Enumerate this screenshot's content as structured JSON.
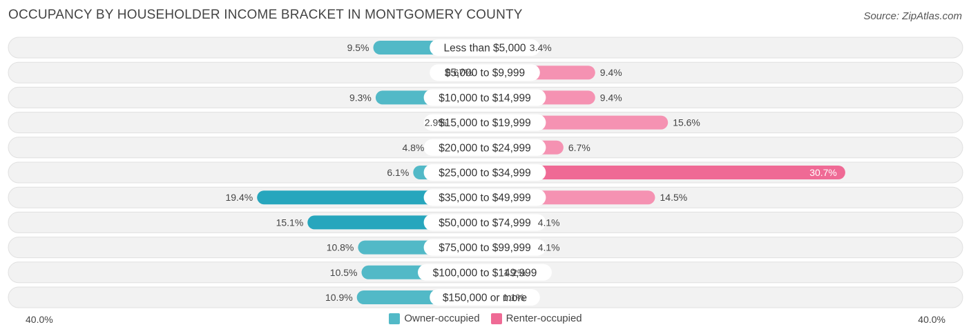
{
  "title": "OCCUPANCY BY HOUSEHOLDER INCOME BRACKET IN MONTGOMERY COUNTY",
  "source": "Source: ZipAtlas.com",
  "axis": {
    "left_label": "40.0%",
    "right_label": "40.0%"
  },
  "legend": {
    "owner_label": "Owner-occupied",
    "renter_label": "Renter-occupied"
  },
  "colors": {
    "owner": "#52b9c7",
    "owner_strong": "#27a6bd",
    "owner_light": "#93d4dc",
    "renter": "#f592b2",
    "renter_strong": "#ef6a95",
    "renter_light": "#f7b3c8",
    "row_bg": "#f1f1f1"
  },
  "chart_data": {
    "type": "bar",
    "orientation": "horizontal-diverging",
    "categories": [
      "Less than $5,000",
      "$5,000 to $9,999",
      "$10,000 to $14,999",
      "$15,000 to $19,999",
      "$20,000 to $24,999",
      "$25,000 to $34,999",
      "$35,000 to $49,999",
      "$50,000 to $74,999",
      "$75,000 to $99,999",
      "$100,000 to $149,999",
      "$150,000 or more"
    ],
    "series": [
      {
        "name": "Owner-occupied",
        "values": [
          9.5,
          0.67,
          9.3,
          2.9,
          4.8,
          6.1,
          19.4,
          15.1,
          10.8,
          10.5,
          10.9
        ],
        "labels": [
          "9.5%",
          "0.67%",
          "9.3%",
          "2.9%",
          "4.8%",
          "6.1%",
          "19.4%",
          "15.1%",
          "10.8%",
          "10.5%",
          "10.9%"
        ]
      },
      {
        "name": "Renter-occupied",
        "values": [
          3.4,
          9.4,
          9.4,
          15.6,
          6.7,
          30.7,
          14.5,
          4.1,
          4.1,
          1.2,
          1.1
        ],
        "labels": [
          "3.4%",
          "9.4%",
          "9.4%",
          "15.6%",
          "6.7%",
          "30.7%",
          "14.5%",
          "4.1%",
          "4.1%",
          "1.2%",
          "1.1%"
        ]
      }
    ],
    "xlim": [
      -40,
      40
    ],
    "legend_position": "bottom-center"
  }
}
